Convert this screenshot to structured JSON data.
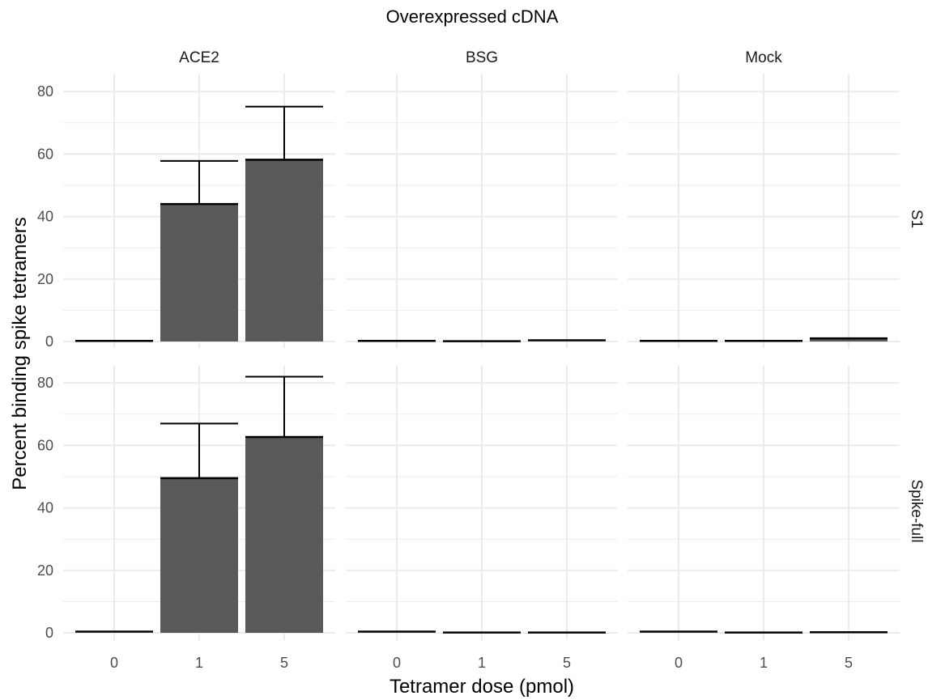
{
  "chart_data": {
    "type": "bar",
    "title": "Overexpressed cDNA",
    "xlabel": "Tetramer dose (pmol)",
    "ylabel": "Percent binding spike tetramers",
    "categories": [
      "0",
      "1",
      "5"
    ],
    "ylim": [
      0,
      85
    ],
    "yticks": [
      "0",
      "20",
      "40",
      "60",
      "80"
    ],
    "grid": true,
    "columns": [
      "ACE2",
      "BSG",
      "Mock"
    ],
    "rows": [
      "S1",
      "Spike-full"
    ],
    "panels": [
      {
        "row": "S1",
        "column": "ACE2",
        "values": [
          0.2,
          44,
          58.2
        ],
        "error_upper": [
          0.2,
          57.8,
          75.2
        ]
      },
      {
        "row": "S1",
        "column": "BSG",
        "values": [
          0.2,
          0.1,
          0.4
        ],
        "error_upper": [
          0.2,
          0.1,
          0.4
        ]
      },
      {
        "row": "S1",
        "column": "Mock",
        "values": [
          0.2,
          0.2,
          1.0
        ],
        "error_upper": [
          0.2,
          0.2,
          1.0
        ]
      },
      {
        "row": "Spike-full",
        "column": "ACE2",
        "values": [
          0.4,
          49.5,
          62.7
        ],
        "error_upper": [
          0.4,
          67,
          82
        ]
      },
      {
        "row": "Spike-full",
        "column": "BSG",
        "values": [
          0.4,
          0.1,
          0.1
        ],
        "error_upper": [
          0.4,
          0.1,
          0.1
        ]
      },
      {
        "row": "Spike-full",
        "column": "Mock",
        "values": [
          0.4,
          0.1,
          0.2
        ],
        "error_upper": [
          0.4,
          0.1,
          0.2
        ]
      }
    ],
    "colors": {
      "bar": "#595959",
      "grid": "#ebebeb",
      "zero_line": "#000000",
      "error_bar": "#000000"
    }
  }
}
